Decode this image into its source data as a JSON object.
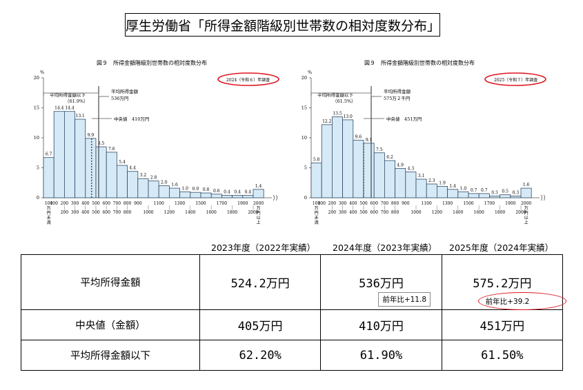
{
  "page_title": "厚生労働省「所得金額階級別世帯数の相対度数分布」",
  "chart_data": [
    {
      "type": "bar",
      "title": "図９　所得金額階級別世帯数の相対度数分布",
      "survey_label": "2024（令和６）年調査",
      "ylabel": "%",
      "ylim": [
        0,
        20
      ],
      "yticks": [
        "0",
        "5",
        "10",
        "15",
        "20"
      ],
      "categories": [
        "100万円未満",
        "100-200",
        "200-300",
        "300-400",
        "400-500",
        "500-600",
        "600-700",
        "700-800",
        "800-900",
        "900-1000",
        "1000-1100",
        "1100-1200",
        "1200-1300",
        "1300-1400",
        "1400-1500",
        "1500-1600",
        "1600-1700",
        "1700-1800",
        "1800-1900",
        "1900-2000",
        "2000万円以上"
      ],
      "values": [
        6.7,
        14.4,
        14.4,
        13.1,
        9.9,
        8.5,
        7.6,
        5.4,
        4.4,
        3.2,
        2.8,
        2.0,
        1.6,
        1.0,
        0.9,
        0.8,
        0.6,
        0.4,
        0.4,
        0.4,
        1.4
      ],
      "value_labels": [
        "6.7",
        "14.4",
        "14.4",
        "13.1",
        "9.9",
        "8.5",
        "7.6",
        "5.4",
        "4.4",
        "3.2",
        "2.8",
        "2.0",
        "1.6",
        "1.0",
        "0.9",
        "0.8",
        "0.6",
        "0.4",
        "0.4",
        "0.4",
        "1.4"
      ],
      "annotations": {
        "below_avg": [
          "平均所得金額以下",
          "（61.9%）"
        ],
        "mean": [
          "平均所得金額",
          "536万円"
        ],
        "median": "中央値　410万円"
      }
    },
    {
      "type": "bar",
      "title": "図９　所得金額階級別世帯数の相対度数分布",
      "survey_label": "2025（令和７）年調査",
      "ylabel": "%",
      "ylim": [
        0,
        20
      ],
      "yticks": [
        "0",
        "5",
        "10",
        "15",
        "20"
      ],
      "categories": [
        "100万円未満",
        "100-200",
        "200-300",
        "300-400",
        "400-500",
        "500-600",
        "600-700",
        "700-800",
        "800-900",
        "900-1000",
        "1000-1100",
        "1100-1200",
        "1200-1300",
        "1300-1400",
        "1400-1500",
        "1500-1600",
        "1600-1700",
        "1700-1800",
        "1800-1900",
        "1900-2000",
        "2000万円以上"
      ],
      "values": [
        5.8,
        12.2,
        13.5,
        13.0,
        9.6,
        9.1,
        7.5,
        6.2,
        4.9,
        4.3,
        3.1,
        2.3,
        1.9,
        1.4,
        1.0,
        0.7,
        0.7,
        0.3,
        0.5,
        0.3,
        1.6
      ],
      "value_labels": [
        "5.8",
        "12.2",
        "13.5",
        "13.0",
        "9.6",
        "9.1",
        "7.5",
        "6.2",
        "4.9",
        "4.3",
        "3.1",
        "2.3",
        "1.9",
        "1.4",
        "1.0",
        "0.7",
        "0.7",
        "0.3",
        "0.5",
        "0.3",
        "1.6"
      ],
      "annotations": {
        "below_avg": [
          "平均所得金額以下",
          "（61.5%）"
        ],
        "mean": [
          "平均所得金額",
          "575万２千円"
        ],
        "median": "中央値　451万円"
      }
    }
  ],
  "x_tick_labels": [
    "100\n万\n円\n未\n満",
    "100",
    "200",
    "300",
    "400",
    "500",
    "600",
    "700",
    "800",
    "900",
    "1100",
    "1300",
    "1500",
    "1700",
    "1900",
    "2000\n万\n円\n以\n上"
  ],
  "x_tick_labels_bottom": [
    "200",
    "300",
    "400",
    "500",
    "600",
    "700",
    "800",
    "1000",
    "1200",
    "1400",
    "1600",
    "1800",
    "2000"
  ],
  "table": {
    "year_headers": [
      "2023年度（2022年実績）",
      "2024年度（2023年実績）",
      "2025年度（2024年実績）"
    ],
    "rows": [
      {
        "label": "平均所得金額",
        "values": [
          "524.2万円",
          "536万円",
          "575.2万円"
        ],
        "notes": [
          "",
          "前年比+11.8",
          "前年比+39.2"
        ]
      },
      {
        "label": "中央値（金額）",
        "values": [
          "405万円",
          "410万円",
          "451万円"
        ]
      },
      {
        "label": "平均所得金額以下",
        "values": [
          "62.20%",
          "61.90%",
          "61.50%"
        ]
      }
    ]
  }
}
